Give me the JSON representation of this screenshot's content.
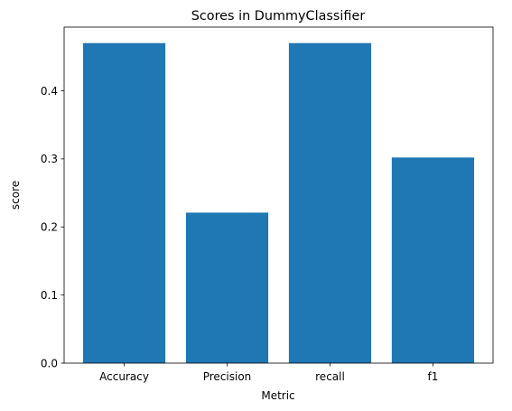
{
  "chart_data": {
    "type": "bar",
    "title": "Scores in DummyClassifier",
    "xlabel": "Metric",
    "ylabel": "score",
    "categories": [
      "Accuracy",
      "Precision",
      "recall",
      "f1"
    ],
    "values": [
      0.47,
      0.221,
      0.47,
      0.302
    ],
    "ylim": [
      0,
      0.4935
    ],
    "yticks": [
      0.0,
      0.1,
      0.2,
      0.3,
      0.4
    ],
    "ytick_labels": [
      "0.0",
      "0.1",
      "0.2",
      "0.3",
      "0.4"
    ],
    "bar_color": "#1f77b4",
    "grid": false,
    "legend": false
  }
}
